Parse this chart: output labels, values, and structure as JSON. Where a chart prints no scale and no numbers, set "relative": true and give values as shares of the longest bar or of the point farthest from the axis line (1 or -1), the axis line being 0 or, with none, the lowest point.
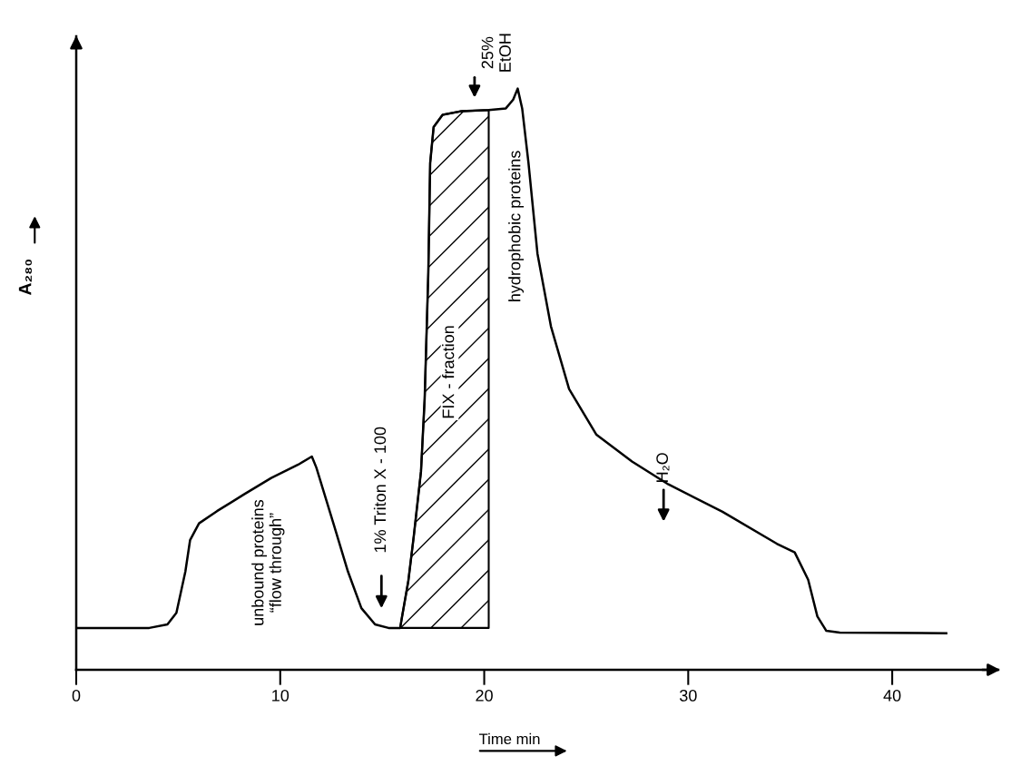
{
  "chart_data": {
    "type": "line",
    "relative": true,
    "xlabel": "Time min",
    "ylabel": "A₂₈₀",
    "xlim": [
      0,
      45.2
    ],
    "xticks": [
      0,
      10,
      20,
      30,
      40
    ],
    "grid": false,
    "legend": false,
    "marker": "none",
    "line_style": "solid",
    "series": [
      {
        "type": "area",
        "color": "#000000",
        "x": [
          15.88,
          15.97,
          16.28,
          16.55,
          16.9,
          17.08,
          17.26,
          17.35,
          17.52,
          17.96,
          18.85,
          20.22
        ],
        "values": [
          0.072,
          0.091,
          0.153,
          0.231,
          0.341,
          0.466,
          0.684,
          0.872,
          0.934,
          0.955,
          0.961,
          0.963
        ]
      },
      {
        "color": "#000000",
        "x": [
          0,
          3.58,
          4.47,
          4.91,
          5.35,
          5.58,
          6.02,
          6.9,
          8.23,
          9.56,
          10.88,
          11.55,
          11.77,
          12.65,
          13.32,
          13.98,
          14.65,
          15.31,
          15.88,
          15.97,
          16.28,
          16.55,
          16.9,
          17.08,
          17.26,
          17.35,
          17.52,
          17.96,
          18.85,
          20.22,
          21.06,
          21.42,
          21.64,
          21.86,
          22.17,
          22.61,
          23.27,
          24.16,
          25.49,
          27.26,
          29.03,
          31.68,
          34.34,
          35.22,
          35.88,
          36.33,
          36.77,
          37.43,
          42.65
        ],
        "values": [
          0.072,
          0.072,
          0.078,
          0.098,
          0.169,
          0.223,
          0.252,
          0.273,
          0.302,
          0.33,
          0.353,
          0.367,
          0.348,
          0.247,
          0.169,
          0.106,
          0.078,
          0.072,
          0.072,
          0.091,
          0.153,
          0.231,
          0.341,
          0.466,
          0.684,
          0.872,
          0.934,
          0.955,
          0.961,
          0.963,
          0.966,
          0.981,
          1.0,
          0.966,
          0.872,
          0.716,
          0.591,
          0.483,
          0.405,
          0.358,
          0.319,
          0.272,
          0.217,
          0.202,
          0.155,
          0.092,
          0.067,
          0.064,
          0.063
        ]
      }
    ],
    "annotations": [
      "1% Triton X - 100",
      "25%\nEtOH",
      "H₂O",
      "unbound proteins\n“flow through”",
      "FIX - fraction",
      "hydrophobic proteins"
    ]
  }
}
